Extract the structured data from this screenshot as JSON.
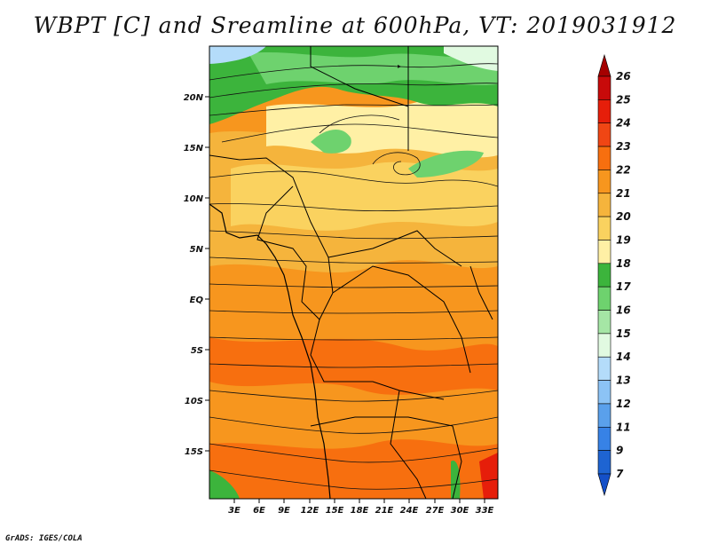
{
  "title": "WBPT [C] and Sreamline at 600hPa, VT: 2019031912",
  "credit": "GrADS: IGES/COLA",
  "map": {
    "lat_labels": [
      "20N",
      "15N",
      "10N",
      "5N",
      "EQ",
      "5S",
      "10S",
      "15S"
    ],
    "lon_labels": [
      "3E",
      "6E",
      "9E",
      "12E",
      "15E",
      "18E",
      "21E",
      "24E",
      "27E",
      "30E",
      "33E"
    ],
    "field": "WBPT",
    "units": "C",
    "level": "600hPa",
    "valid_time": "2019031912"
  },
  "colorbar": {
    "labels": [
      "26",
      "25",
      "24",
      "23",
      "22",
      "21",
      "20",
      "19",
      "18",
      "17",
      "16",
      "15",
      "14",
      "13",
      "12",
      "11",
      "9",
      "7"
    ],
    "colors": [
      "#a50000",
      "#c80a0a",
      "#e61e0a",
      "#f04614",
      "#f76f0f",
      "#f7961e",
      "#f5b43c",
      "#fad25f",
      "#fff0a5",
      "#3cb43c",
      "#6ed26e",
      "#a5e6a5",
      "#e1fae1",
      "#b4dcfa",
      "#8cc3f5",
      "#5aa0eb",
      "#3782e6",
      "#1e64d2",
      "#1450c8"
    ]
  }
}
